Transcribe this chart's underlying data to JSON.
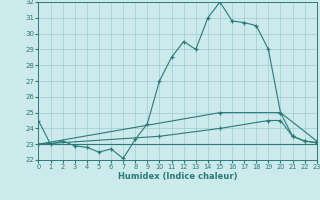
{
  "xlabel": "Humidex (Indice chaleur)",
  "bg_color": "#cce9ec",
  "grid_color": "#9dcdd4",
  "line_color": "#2a7a7a",
  "xlim": [
    0,
    23
  ],
  "ylim": [
    22,
    32
  ],
  "xticks": [
    0,
    1,
    2,
    3,
    4,
    5,
    6,
    7,
    8,
    9,
    10,
    11,
    12,
    13,
    14,
    15,
    16,
    17,
    18,
    19,
    20,
    21,
    22,
    23
  ],
  "yticks": [
    22,
    23,
    24,
    25,
    26,
    27,
    28,
    29,
    30,
    31,
    32
  ],
  "series": [
    {
      "x": [
        0,
        1,
        2,
        3,
        4,
        5,
        6,
        7,
        8,
        9,
        10,
        11,
        12,
        13,
        14,
        15,
        16,
        17,
        18,
        19,
        20,
        21,
        22,
        23
      ],
      "y": [
        24.5,
        23.0,
        23.2,
        22.9,
        22.8,
        22.5,
        22.7,
        22.1,
        23.3,
        24.3,
        27.0,
        28.5,
        29.5,
        29.0,
        31.0,
        32.0,
        30.8,
        30.7,
        30.5,
        29.0,
        25.0,
        23.5,
        23.2,
        23.1
      ],
      "markers": true
    },
    {
      "x": [
        0,
        15,
        20,
        23
      ],
      "y": [
        23.0,
        25.0,
        25.0,
        23.2
      ],
      "markers": true
    },
    {
      "x": [
        0,
        10,
        15,
        19,
        20,
        21,
        22,
        23
      ],
      "y": [
        23.0,
        23.5,
        24.0,
        24.5,
        24.5,
        23.5,
        23.2,
        23.1
      ],
      "markers": true
    },
    {
      "x": [
        0,
        23
      ],
      "y": [
        23.0,
        23.0
      ],
      "markers": false
    }
  ]
}
